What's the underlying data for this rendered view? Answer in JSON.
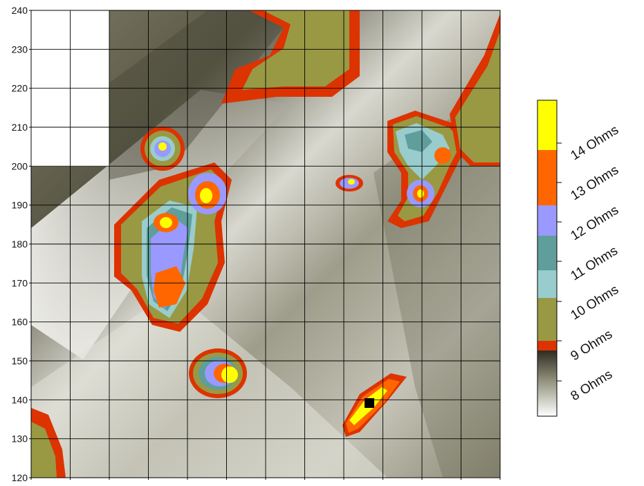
{
  "map": {
    "y_axis": {
      "min": 120,
      "max": 240,
      "step": 10,
      "tick_labels": [
        "240",
        "230",
        "220",
        "210",
        "200",
        "190",
        "180",
        "170",
        "160",
        "150",
        "140",
        "130",
        "120"
      ]
    },
    "grid_columns": 12,
    "grid_rows": 12,
    "legend": {
      "labels": [
        "14 Ohms",
        "13 Ohms",
        "12 Ohms",
        "11 Ohms",
        "10 Ohms",
        "9 Ohms",
        "8 Ohms"
      ],
      "colors": {
        "yellow": "#ffff00",
        "orange": "#ff6600",
        "violet": "#9999ff",
        "teal": "#5f9e9a",
        "cyan": "#99cccc",
        "olive": "#999944",
        "red": "#dd3300",
        "dark": "#3d3a2c",
        "light": "#ffffff"
      }
    }
  }
}
